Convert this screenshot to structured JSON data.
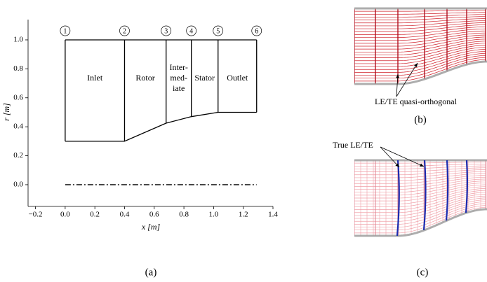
{
  "chart_data": {
    "type": "line",
    "xlabel": "x [m]",
    "ylabel": "r [m]",
    "xlim": [
      -0.25,
      1.4
    ],
    "ylim": [
      -0.15,
      1.14
    ],
    "xticks": [
      {
        "value": -0.2,
        "label": "−0.2"
      },
      {
        "value": 0,
        "label": "0.0"
      },
      0.2,
      0.4,
      0.6,
      0.8,
      {
        "value": 1,
        "label": "1.0"
      },
      1.2,
      1.4
    ],
    "yticks": [
      {
        "value": 0,
        "label": "0.0"
      },
      0.2,
      0.4,
      0.6,
      0.8,
      {
        "value": 1,
        "label": "1.0"
      }
    ],
    "x": [
      0,
      0.4,
      0.68,
      0.85,
      1.03,
      1.29
    ],
    "hub": [
      0.3,
      0.3,
      0.425,
      0.47,
      0.5,
      0.5
    ],
    "shroud": [
      1,
      1,
      1,
      1,
      1,
      1
    ],
    "centerline": [
      0,
      0,
      0,
      0,
      0,
      0
    ],
    "station_labels": [
      "1",
      "2",
      "3",
      "4",
      "5",
      "6"
    ],
    "region_labels": [
      [
        "Inlet"
      ],
      [
        "Rotor"
      ],
      [
        "Inter-",
        "med-",
        "iate"
      ],
      [
        "Stator"
      ],
      [
        "Outlet"
      ]
    ],
    "panel_label": "(a)"
  },
  "panels": {
    "b": {
      "annotation": "LE/TE quasi-orthogonal",
      "label": "(b)"
    },
    "c": {
      "annotation": "True LE/TE",
      "label": "(c)"
    }
  }
}
